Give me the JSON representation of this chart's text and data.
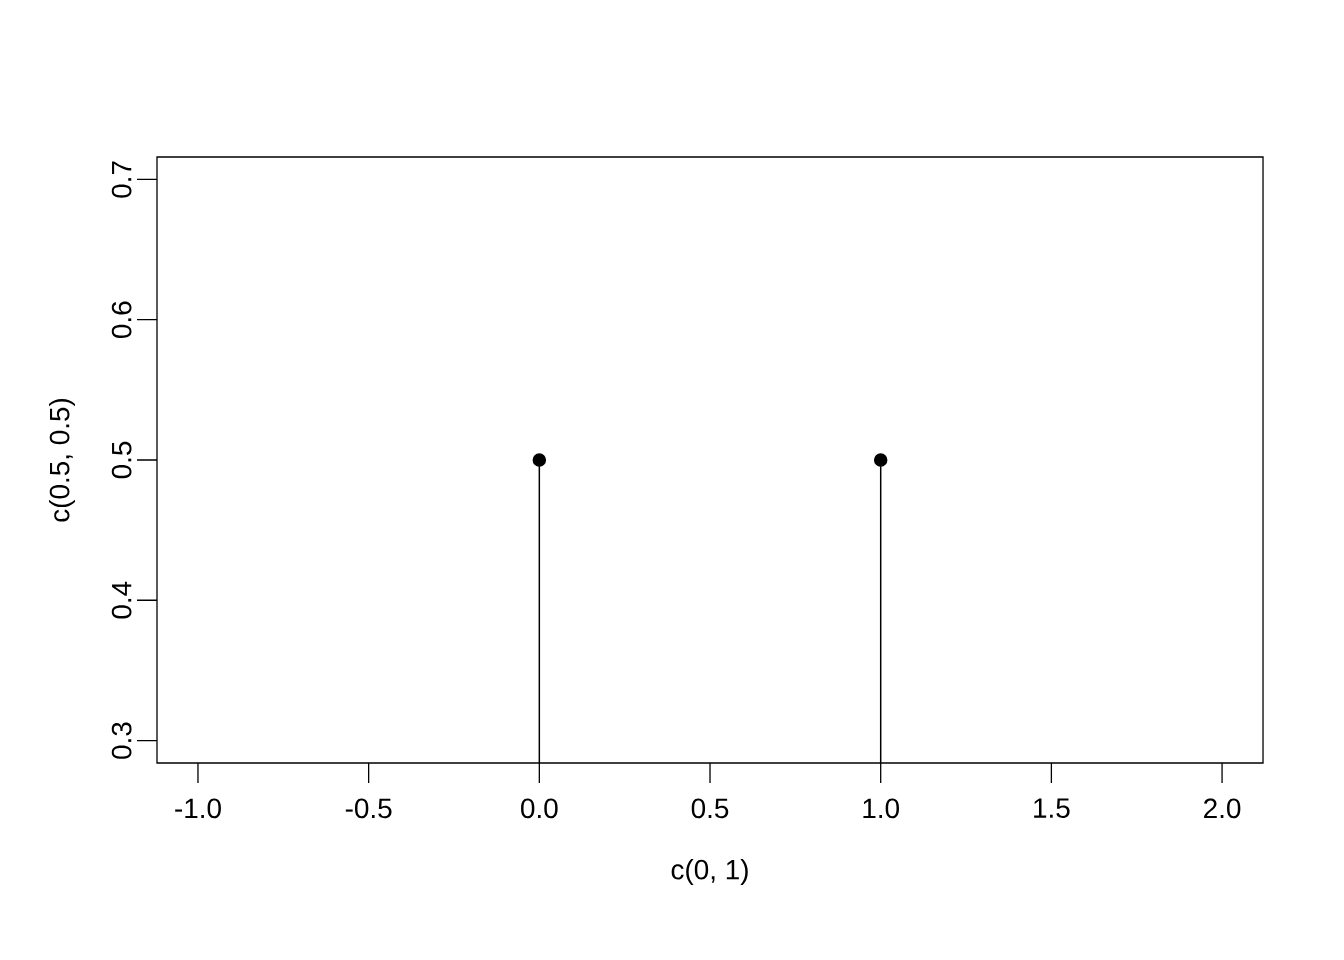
{
  "chart_data": {
    "type": "lollipop",
    "xlabel": "c(0, 1)",
    "ylabel": "c(0.5, 0.5)",
    "x": [
      0,
      1
    ],
    "values": [
      0.5,
      0.5
    ],
    "color": "#000000",
    "marker": "circle",
    "xlim": [
      -1.12,
      2.12
    ],
    "ylim": [
      0.284,
      0.716
    ],
    "xticks": [
      {
        "value": -1,
        "label": "-1.0"
      },
      {
        "value": -0.5,
        "label": "-0.5"
      },
      {
        "value": 0,
        "label": "0.0"
      },
      0.5,
      {
        "value": 1,
        "label": "1.0"
      },
      1.5,
      {
        "value": 2,
        "label": "2.0"
      }
    ],
    "yticks": [
      0.3,
      0.4,
      0.5,
      0.6,
      0.7
    ]
  }
}
